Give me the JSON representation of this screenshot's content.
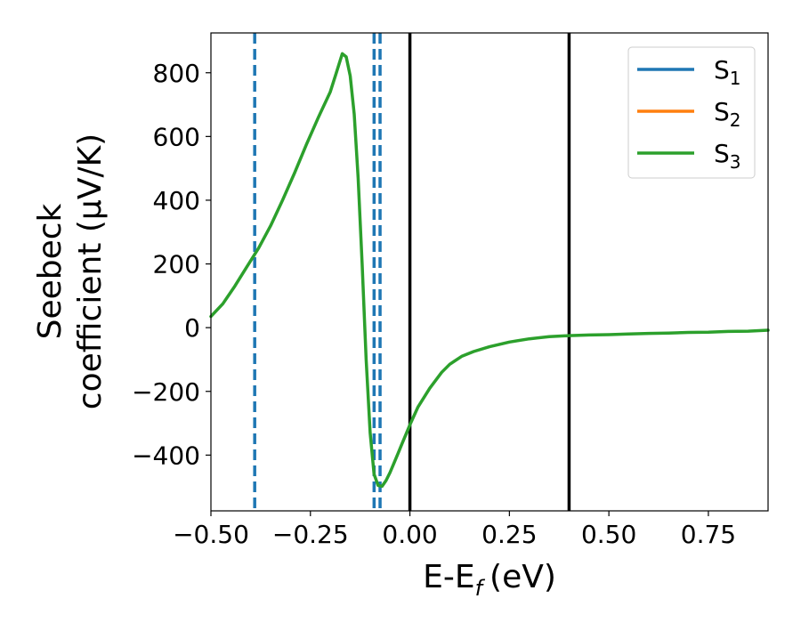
{
  "chart_data": {
    "type": "line",
    "xlabel": "E-E",
    "xlabel_sub": "f",
    "xlabel_unit": "(eV)",
    "ylabel_line1": "Seebeck",
    "ylabel_line2": "coefficient  (μV/K)",
    "xlim": [
      -0.5,
      0.9
    ],
    "ylim": [
      -575,
      925
    ],
    "grid": false,
    "legend_position": "top-right",
    "xticks": [
      -0.5,
      -0.25,
      0.0,
      0.25,
      0.5,
      0.75
    ],
    "xtick_labels": [
      "−0.50",
      "−0.25",
      "0.00",
      "0.25",
      "0.50",
      "0.75"
    ],
    "yticks": [
      800,
      600,
      400,
      200,
      0,
      -200,
      -400
    ],
    "ytick_labels": [
      "800",
      "600",
      "400",
      "200",
      "0",
      "−200",
      "−400"
    ],
    "series": [
      {
        "name": "S",
        "sub": "1",
        "color": "#1f77b4",
        "x": [],
        "y": []
      },
      {
        "name": "S",
        "sub": "2",
        "color": "#ff7f0e",
        "x": [],
        "y": []
      },
      {
        "name": "S",
        "sub": "3",
        "color": "#2ca02c",
        "x": [
          -0.5,
          -0.47,
          -0.44,
          -0.41,
          -0.38,
          -0.35,
          -0.32,
          -0.29,
          -0.26,
          -0.23,
          -0.2,
          -0.185,
          -0.17,
          -0.16,
          -0.15,
          -0.14,
          -0.13,
          -0.12,
          -0.11,
          -0.1,
          -0.09,
          -0.08,
          -0.07,
          -0.06,
          -0.05,
          -0.04,
          -0.03,
          -0.02,
          0.0,
          0.02,
          0.05,
          0.08,
          0.1,
          0.13,
          0.16,
          0.2,
          0.25,
          0.3,
          0.35,
          0.4,
          0.45,
          0.5,
          0.55,
          0.6,
          0.65,
          0.7,
          0.75,
          0.8,
          0.85,
          0.9
        ],
        "y": [
          35,
          75,
          130,
          190,
          250,
          320,
          400,
          485,
          575,
          660,
          740,
          800,
          860,
          850,
          790,
          670,
          470,
          200,
          -100,
          -330,
          -460,
          -495,
          -498,
          -480,
          -455,
          -425,
          -395,
          -365,
          -305,
          -250,
          -190,
          -140,
          -115,
          -90,
          -75,
          -60,
          -45,
          -35,
          -28,
          -25,
          -23,
          -22,
          -20,
          -18,
          -17,
          -15,
          -14,
          -12,
          -11,
          -8
        ]
      }
    ],
    "vlines": [
      {
        "x": -0.39,
        "style": "dashed",
        "color": "#1f77b4"
      },
      {
        "x": -0.09,
        "style": "dashed",
        "color": "#1f77b4"
      },
      {
        "x": -0.075,
        "style": "dashed",
        "color": "#1f77b4"
      },
      {
        "x": 0.0,
        "style": "solid",
        "color": "#000000"
      },
      {
        "x": 0.4,
        "style": "solid",
        "color": "#000000"
      }
    ]
  }
}
